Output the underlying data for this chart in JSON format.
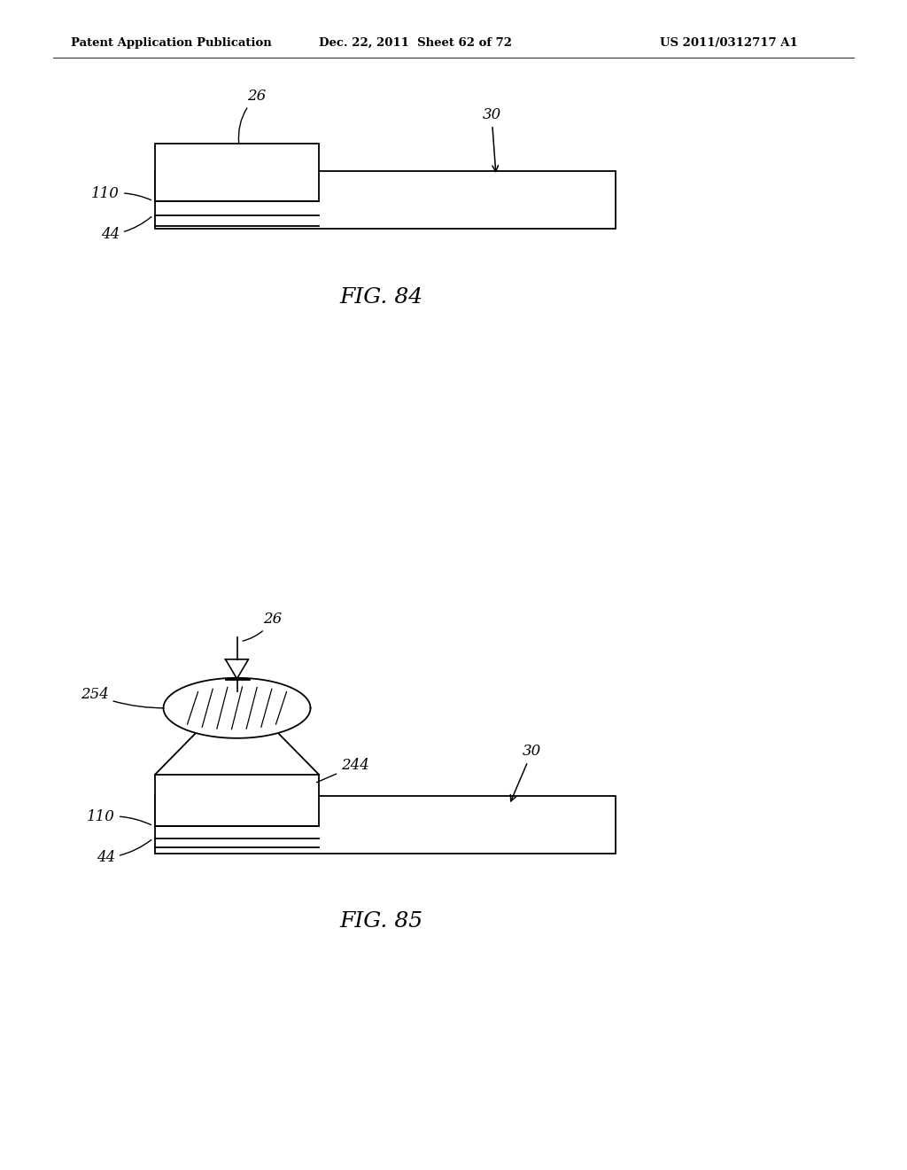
{
  "bg_color": "#ffffff",
  "line_color": "#000000",
  "header_left": "Patent Application Publication",
  "header_mid": "Dec. 22, 2011  Sheet 62 of 72",
  "header_right": "US 2011/0312717 A1",
  "fig84_label": "FIG. 84",
  "fig85_label": "FIG. 85"
}
